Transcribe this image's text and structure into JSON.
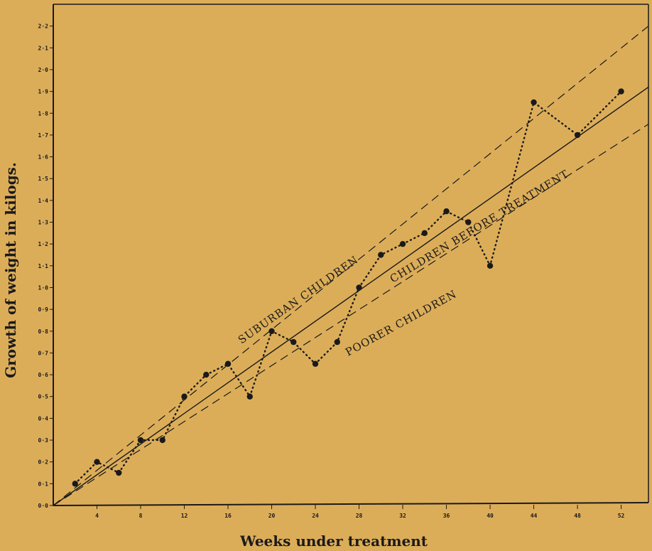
{
  "chart_data": {
    "type": "line",
    "title": "",
    "xlabel": "Weeks under treatment",
    "ylabel": "Growth of weight in kilogs.",
    "xlim": [
      0,
      54.5
    ],
    "ylim": [
      0,
      2.3
    ],
    "x_ticks": [
      4,
      8,
      12,
      16,
      20,
      24,
      28,
      32,
      36,
      40,
      44,
      48,
      52
    ],
    "x_tick_labels": [
      "4",
      "8",
      "12",
      "16",
      "20",
      "24",
      "28",
      "32",
      "36",
      "40",
      "44",
      "48",
      "52"
    ],
    "y_ticks": [
      0.0,
      0.1,
      0.2,
      0.3,
      0.4,
      0.5,
      0.6,
      0.7,
      0.8,
      0.9,
      1.0,
      1.1,
      1.2,
      1.3,
      1.4,
      1.5,
      1.6,
      1.7,
      1.8,
      1.9,
      2.0,
      2.1,
      2.2
    ],
    "y_tick_labels": [
      "0·0",
      "0·1",
      "0·2",
      "0·3",
      "0·4",
      "0·5",
      "0·6",
      "0·7",
      "0·8",
      "0·9",
      "1·0",
      "1·1",
      "1·2",
      "1·3",
      "1·4",
      "1·5",
      "1·6",
      "1·7",
      "1·8",
      "1·9",
      "2·0",
      "2·1",
      "2·2"
    ],
    "grid": false,
    "series": [
      {
        "name": "",
        "style": "dotted-with-markers",
        "x": [
          2,
          4,
          6,
          8,
          10,
          12,
          14,
          16,
          18,
          20,
          22,
          24,
          26,
          28,
          30,
          32,
          34,
          36,
          38,
          40,
          44,
          48,
          52
        ],
        "y": [
          0.1,
          0.2,
          0.15,
          0.3,
          0.3,
          0.5,
          0.6,
          0.65,
          0.5,
          0.8,
          0.75,
          0.65,
          0.75,
          1.0,
          1.15,
          1.2,
          1.25,
          1.35,
          1.3,
          1.1,
          1.85,
          1.7,
          1.9
        ]
      },
      {
        "name": "SUBURBAN CHILDREN",
        "style": "dashed",
        "x": [
          0,
          54.5
        ],
        "y": [
          0,
          2.2
        ]
      },
      {
        "name": "CHILDREN BEFORE TREATMENT",
        "style": "solid",
        "x": [
          0,
          54.5
        ],
        "y": [
          0,
          1.92
        ]
      },
      {
        "name": "POORER CHILDREN",
        "style": "dashed",
        "x": [
          0,
          54.5
        ],
        "y": [
          0,
          1.75
        ]
      }
    ]
  },
  "colors": {
    "background": "#dcad59",
    "ink": "#1a1a1a"
  }
}
